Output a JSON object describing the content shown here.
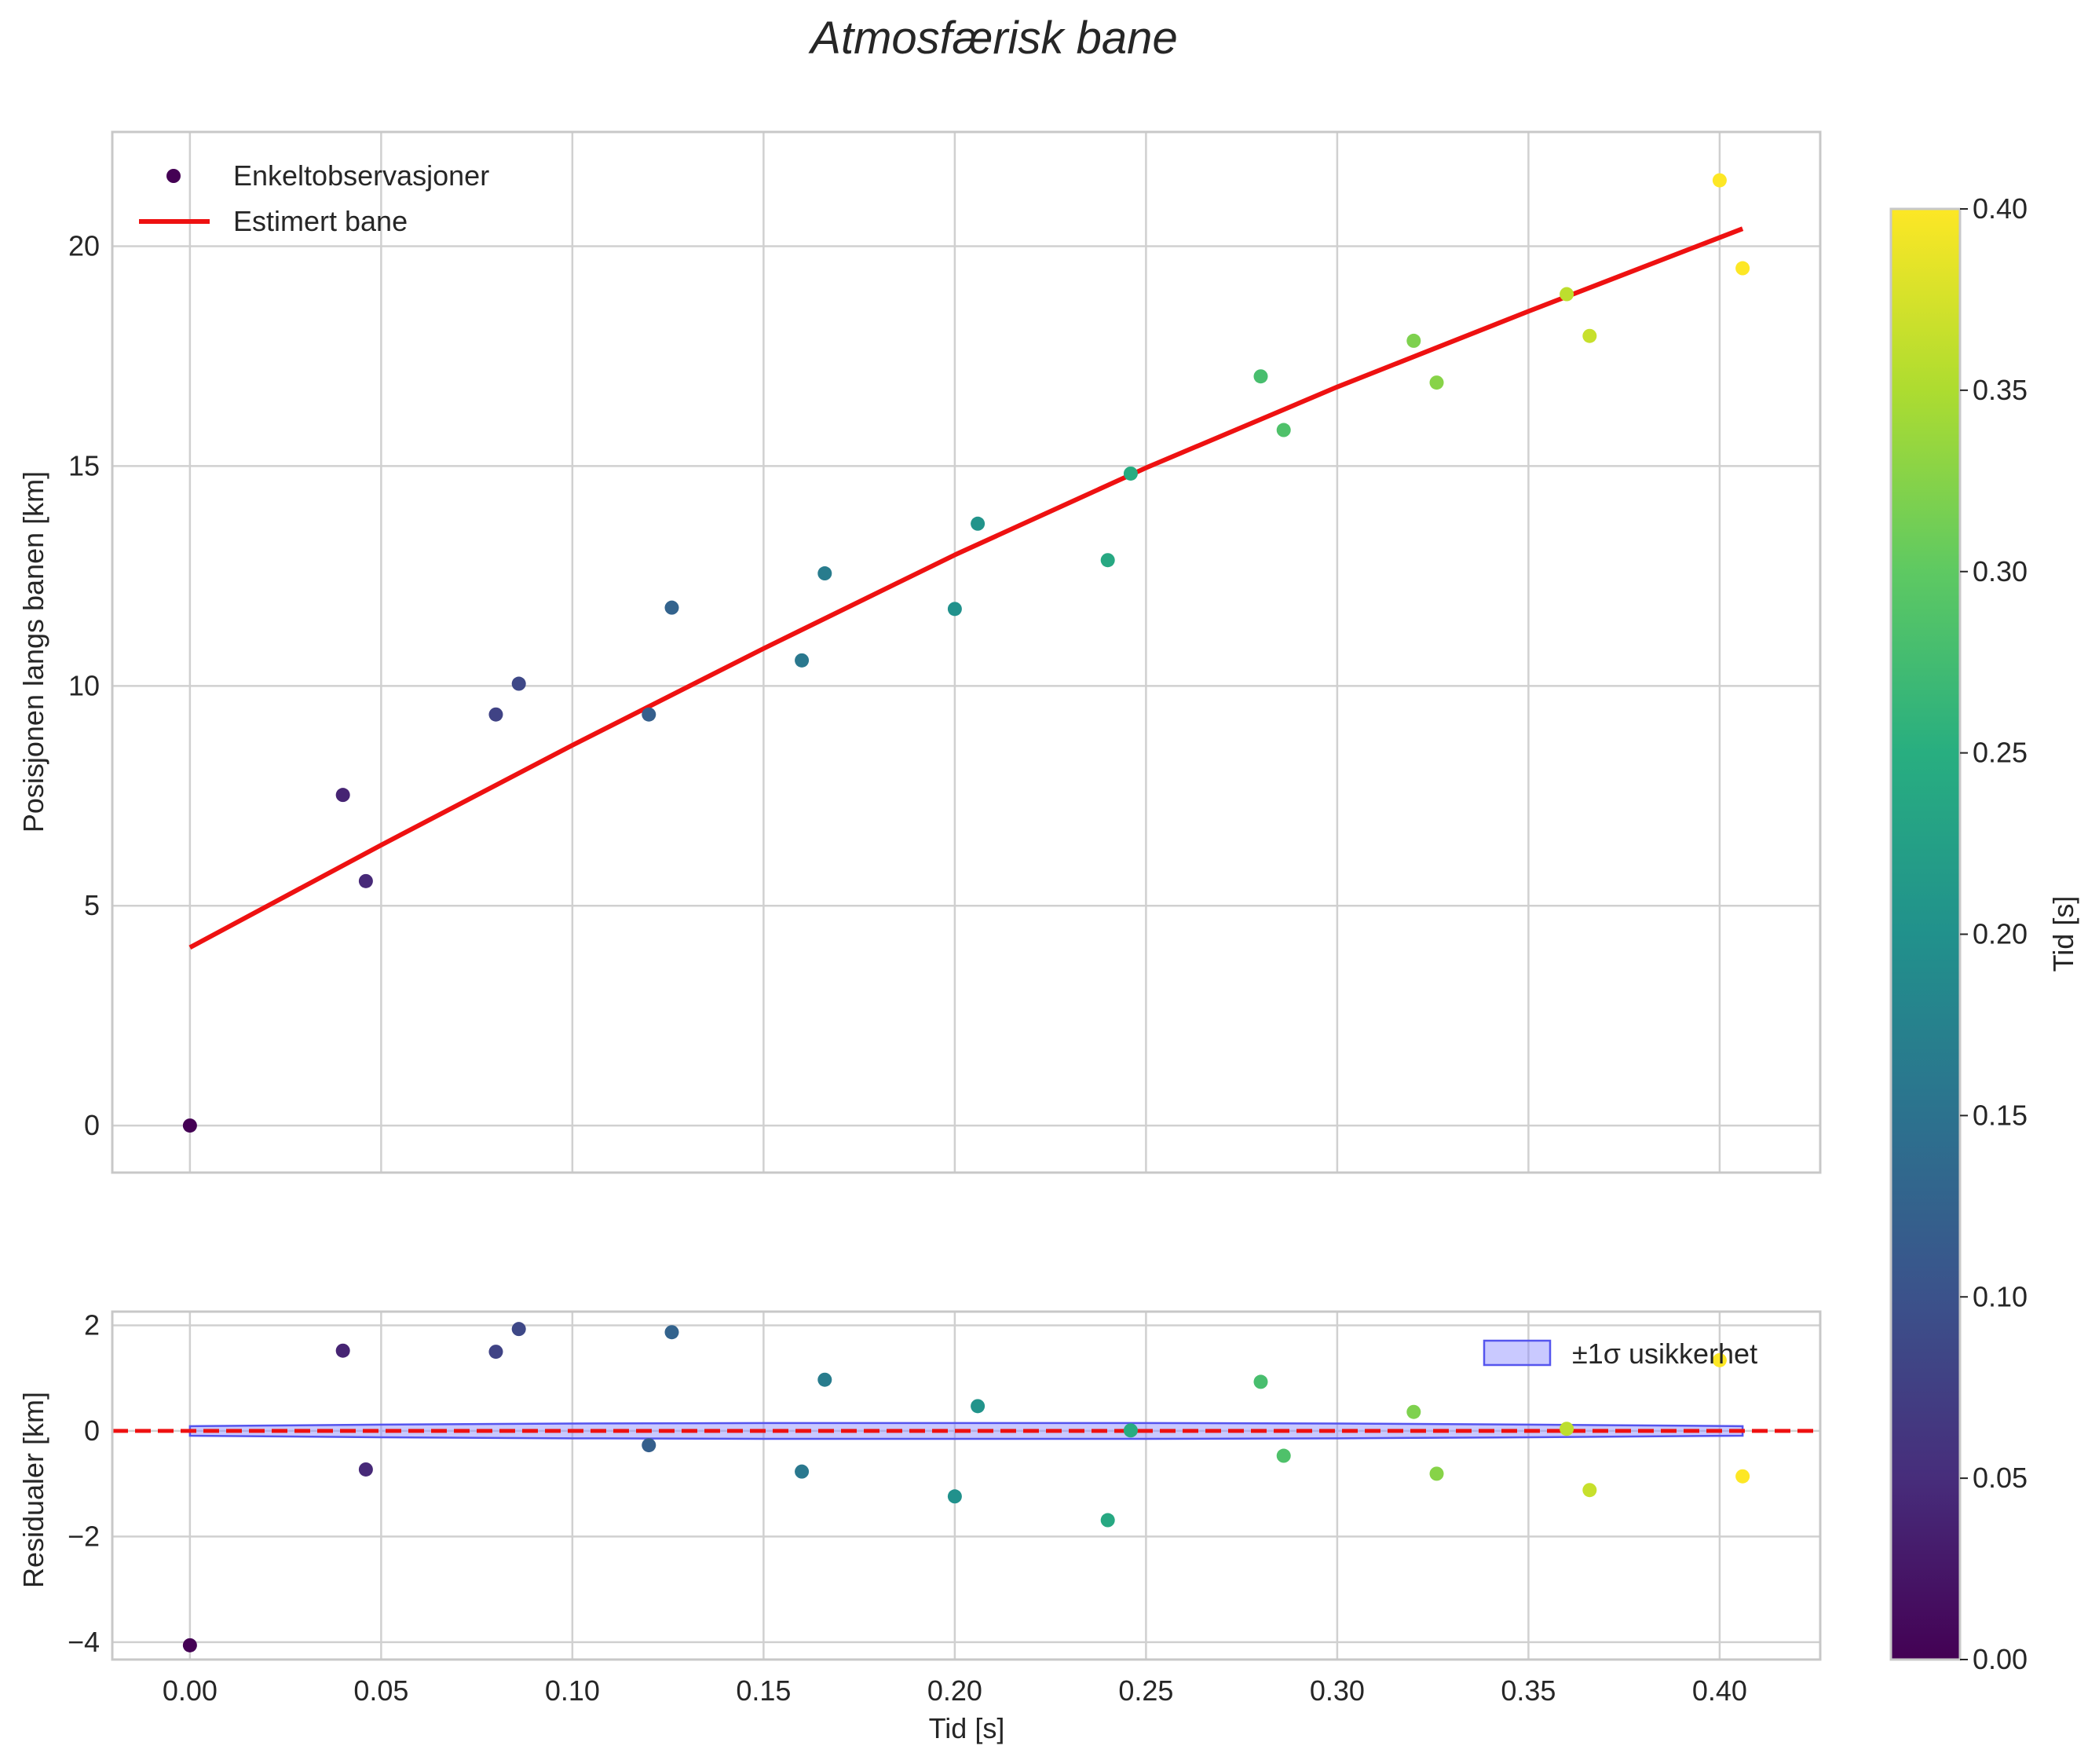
{
  "chart_data": {
    "type": "scatter",
    "title": "Atmosfærisk bane",
    "top_panel": {
      "ylabel": "Posisjonen langs banen [km]",
      "xlim": [
        -0.0203,
        0.4263
      ],
      "ylim": [
        -1.07,
        22.6
      ],
      "xticks": [
        0.0,
        0.05,
        0.1,
        0.15,
        0.2,
        0.25,
        0.3,
        0.35,
        0.4
      ],
      "yticks": [
        0,
        5,
        10,
        15,
        20
      ],
      "ytick_labels": [
        "0",
        "5",
        "10",
        "15",
        "20"
      ],
      "grid": true,
      "legend_position": "upper-left",
      "legend": [
        "Enkeltobservasjoner",
        "Estimert bane"
      ],
      "observations": {
        "t": [
          0.0,
          0.04,
          0.046,
          0.08,
          0.086,
          0.12,
          0.126,
          0.16,
          0.166,
          0.2,
          0.206,
          0.24,
          0.246,
          0.28,
          0.286,
          0.32,
          0.326,
          0.36,
          0.366,
          0.4,
          0.406
        ],
        "position": [
          0.0,
          7.52,
          5.56,
          9.35,
          10.05,
          9.35,
          11.78,
          10.58,
          12.56,
          11.75,
          13.69,
          12.86,
          14.83,
          17.04,
          15.82,
          17.85,
          16.9,
          18.91,
          17.96,
          21.5,
          19.5
        ]
      },
      "estimated_path": {
        "t": [
          0.0,
          0.05,
          0.1,
          0.15,
          0.2,
          0.25,
          0.3,
          0.35,
          0.406
        ],
        "position": [
          4.05,
          6.38,
          8.65,
          10.85,
          12.98,
          14.96,
          16.8,
          18.52,
          20.4
        ]
      }
    },
    "bottom_panel": {
      "ylabel": "Residualer [km]",
      "xlabel": "Tid [s]",
      "xlim": [
        -0.0203,
        0.4263
      ],
      "ylim": [
        -4.33,
        2.26
      ],
      "xticks": [
        0.0,
        0.05,
        0.1,
        0.15,
        0.2,
        0.25,
        0.3,
        0.35,
        0.4
      ],
      "xtick_labels": [
        "0.00",
        "0.05",
        "0.10",
        "0.15",
        "0.20",
        "0.25",
        "0.30",
        "0.35",
        "0.40"
      ],
      "yticks": [
        -4,
        -2,
        0,
        2
      ],
      "ytick_labels": [
        "−4",
        "−2",
        "0",
        "2"
      ],
      "grid": true,
      "legend_position": "upper-right",
      "legend": [
        "±1σ usikkerhet"
      ],
      "residuals": [
        -4.06,
        1.52,
        -0.73,
        1.5,
        1.93,
        -0.27,
        1.87,
        -0.77,
        0.97,
        -1.24,
        0.47,
        -1.69,
        0.01,
        0.93,
        -0.47,
        0.36,
        -0.81,
        0.04,
        -1.12,
        1.34,
        -0.86
      ],
      "uncertainty_band": {
        "t": [
          0.0,
          0.05,
          0.1,
          0.15,
          0.2,
          0.25,
          0.3,
          0.35,
          0.406
        ],
        "sigma": [
          0.09,
          0.12,
          0.14,
          0.15,
          0.15,
          0.15,
          0.14,
          0.12,
          0.09
        ]
      },
      "zero_line": 0
    },
    "colorbar": {
      "label": "Tid [s]",
      "colormap": "viridis",
      "range": [
        0.0,
        0.4
      ],
      "ticks": [
        0.0,
        0.05,
        0.1,
        0.15,
        0.2,
        0.25,
        0.3,
        0.35,
        0.4
      ],
      "tick_labels": [
        "0.00",
        "0.05",
        "0.10",
        "0.15",
        "0.20",
        "0.25",
        "0.30",
        "0.35",
        "0.40"
      ]
    },
    "colors": {
      "fit_line": "#ee1111",
      "zero_line": "#ee1111",
      "band_fill": "#8888ff",
      "band_edge": "#5555ee",
      "grid": "#d0d0d0",
      "spine": "#c8c8c8"
    }
  }
}
